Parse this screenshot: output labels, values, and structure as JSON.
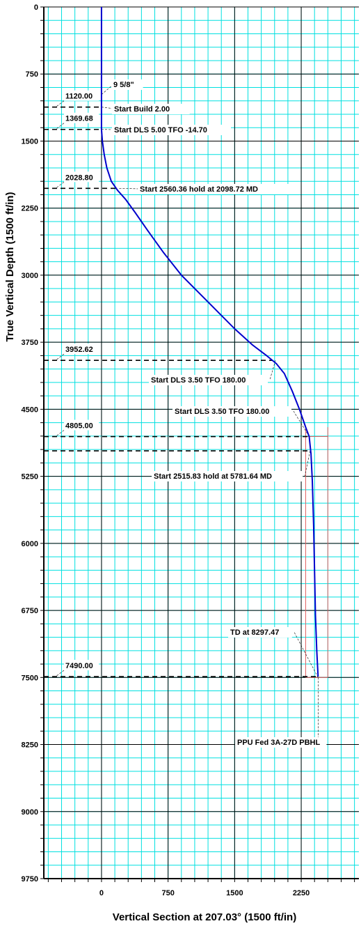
{
  "chart_data": {
    "type": "line",
    "xlabel": "Vertical Section at 207.03° (1500 ft/in)",
    "ylabel": "True Vertical Depth (1500 ft/in)",
    "xlim": [
      -650,
      2900
    ],
    "ylim": [
      0,
      9750
    ],
    "y_reversed": true,
    "x_ticks": [
      0,
      750,
      1500,
      2250
    ],
    "y_ticks": [
      0,
      750,
      1500,
      2250,
      3000,
      3750,
      4500,
      5250,
      6000,
      6750,
      7500,
      8250,
      9000,
      9750
    ],
    "grid": true,
    "colors": {
      "well_path": "#0000cc",
      "minor_grid": "#00e0e0",
      "major_grid": "#000000",
      "target_box": "#e06060"
    },
    "series": [
      {
        "x": [
          0,
          0,
          0,
          10,
          30,
          60,
          110,
          180,
          270,
          380,
          520,
          700,
          900,
          1100,
          1300,
          1500,
          1700,
          1860,
          1970,
          2060,
          2150,
          2230,
          2300,
          2340,
          2360,
          2375,
          2390,
          2400,
          2410,
          2425,
          2440
        ],
        "y": [
          0,
          750,
          1369.68,
          1500,
          1650,
          1800,
          1950,
          2050,
          2150,
          2300,
          2500,
          2750,
          3000,
          3200,
          3400,
          3600,
          3780,
          3900,
          3990,
          4100,
          4300,
          4500,
          4700,
          4805,
          5000,
          5300,
          5800,
          6300,
          6800,
          7200,
          7490
        ]
      }
    ],
    "target": {
      "name": "PPU Fed 3A-27D PBHL",
      "x_min": 2300,
      "x_max": 2550,
      "y_min": 4700,
      "y_max": 7500
    },
    "reference_lines": [
      {
        "label": "1120.00",
        "tvd": 1120
      },
      {
        "label": "1369.68",
        "tvd": 1369.68
      },
      {
        "label": "2028.80",
        "tvd": 2028.8
      },
      {
        "label": "3952.62",
        "tvd": 3952.62
      },
      {
        "label": "4805.00",
        "tvd": 4805
      },
      {
        "label": "",
        "tvd": 4965
      },
      {
        "label": "7490.00",
        "tvd": 7490
      }
    ],
    "annotations": [
      {
        "text": "9 5/8\"",
        "x": 0,
        "y": 980
      },
      {
        "text": "Start Build 2.00",
        "x": 0,
        "y": 1120
      },
      {
        "text": "Start DLS 5.00 TFO -14.70",
        "x": 0,
        "y": 1369.68
      },
      {
        "text": "Start 2560.36 hold at 2098.72 MD",
        "x": 200,
        "y": 2028.8
      },
      {
        "text": "Start DLS 3.50 TFO 180.00",
        "x": 1960,
        "y": 3952.62
      },
      {
        "text": "Start DLS 3.50 TFO 180.00",
        "x": 2340,
        "y": 4805
      },
      {
        "text": "Start 2515.83 hold at 5781.64 MD",
        "x": 2350,
        "y": 4965
      },
      {
        "text": "TD at 8297.47",
        "x": 2440,
        "y": 7500
      },
      {
        "text": "PPU Fed 3A-27D PBHL",
        "x": 2440,
        "y": 7500
      }
    ]
  }
}
